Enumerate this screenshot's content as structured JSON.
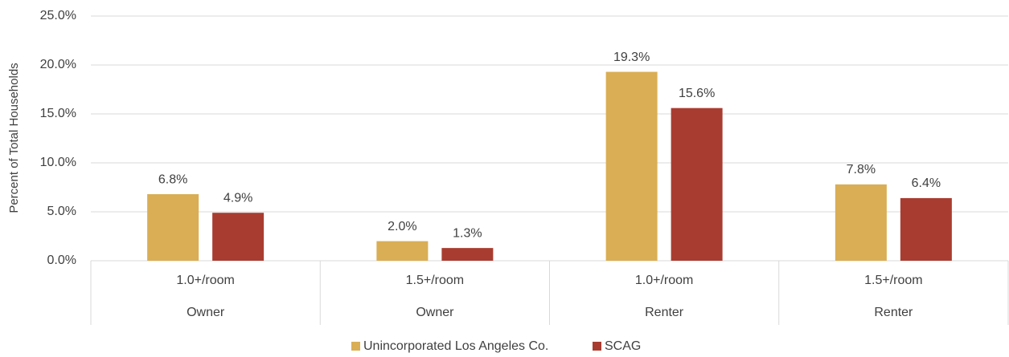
{
  "chart_data": {
    "type": "bar",
    "y_label": "Percent of Total Households",
    "categories": [
      "1.0+/room",
      "1.5+/room",
      "1.0+/room",
      "1.5+/room"
    ],
    "groups": [
      "Owner",
      "Owner",
      "Renter",
      "Renter"
    ],
    "series": [
      {
        "name": "Unincorporated Los Angeles Co.",
        "color": "#d9ae55",
        "values": [
          6.8,
          2.0,
          19.3,
          7.8
        ],
        "value_labels": [
          "6.8%",
          "2.0%",
          "19.3%",
          "7.8%"
        ]
      },
      {
        "name": "SCAG",
        "color": "#a93c30",
        "values": [
          4.9,
          1.3,
          15.6,
          6.4
        ],
        "value_labels": [
          "4.9%",
          "1.3%",
          "15.6%",
          "6.4%"
        ]
      }
    ],
    "ylim": [
      0,
      25
    ],
    "yticks": [
      {
        "value": 0,
        "label": "0.0%"
      },
      {
        "value": 5,
        "label": "5.0%"
      },
      {
        "value": 10,
        "label": "10.0%"
      },
      {
        "value": 15,
        "label": "15.0%"
      },
      {
        "value": 20,
        "label": "20.0%"
      },
      {
        "value": 25,
        "label": "25.0%"
      }
    ],
    "grid": true,
    "legend": "bottom"
  }
}
